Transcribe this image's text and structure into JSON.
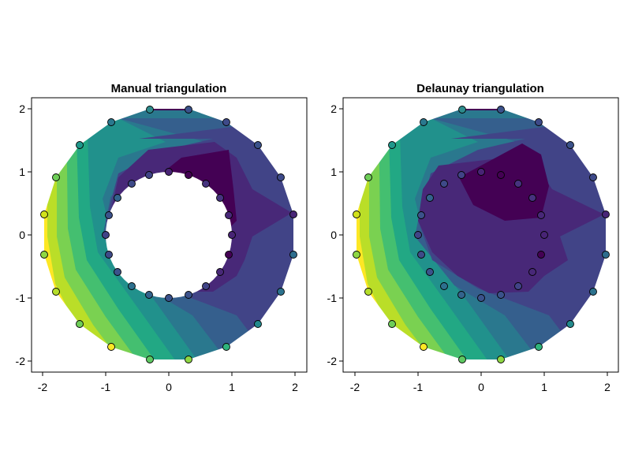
{
  "chart_data": [
    {
      "type": "contour",
      "title": "Manual triangulation",
      "xlabel": "",
      "ylabel": "",
      "xlim": [
        -2.18,
        2.18
      ],
      "ylim": [
        -2.18,
        2.18
      ],
      "x_ticks": [
        -2,
        -1,
        0,
        1,
        2
      ],
      "y_ticks": [
        -2,
        -1,
        0,
        1,
        2
      ],
      "x_tick_labels": [
        "-2",
        "-1",
        "0",
        "1",
        "2"
      ],
      "y_tick_labels": [
        "-2",
        "-1",
        "0",
        "1",
        "2"
      ],
      "grid": true,
      "triangulation": "manual",
      "outer_ring_radius": 2.0,
      "inner_ring_radius": 1.0,
      "colormap": "viridis",
      "field_range": [
        0.0,
        1.0
      ]
    },
    {
      "type": "contour",
      "title": "Delaunay triangulation",
      "xlabel": "",
      "ylabel": "",
      "xlim": [
        -2.18,
        2.18
      ],
      "ylim": [
        -2.18,
        2.18
      ],
      "x_ticks": [
        -2,
        -1,
        0,
        1,
        2
      ],
      "y_ticks": [
        -2,
        -1,
        0,
        1,
        2
      ],
      "x_tick_labels": [
        "-2",
        "-1",
        "0",
        "1",
        "2"
      ],
      "y_tick_labels": [
        "-2",
        "-1",
        "0",
        "1",
        "2"
      ],
      "grid": true,
      "triangulation": "delaunay",
      "outer_ring_radius": 2.0,
      "inner_ring_radius": 1.0,
      "colormap": "viridis",
      "field_range": [
        0.0,
        1.0
      ]
    }
  ]
}
